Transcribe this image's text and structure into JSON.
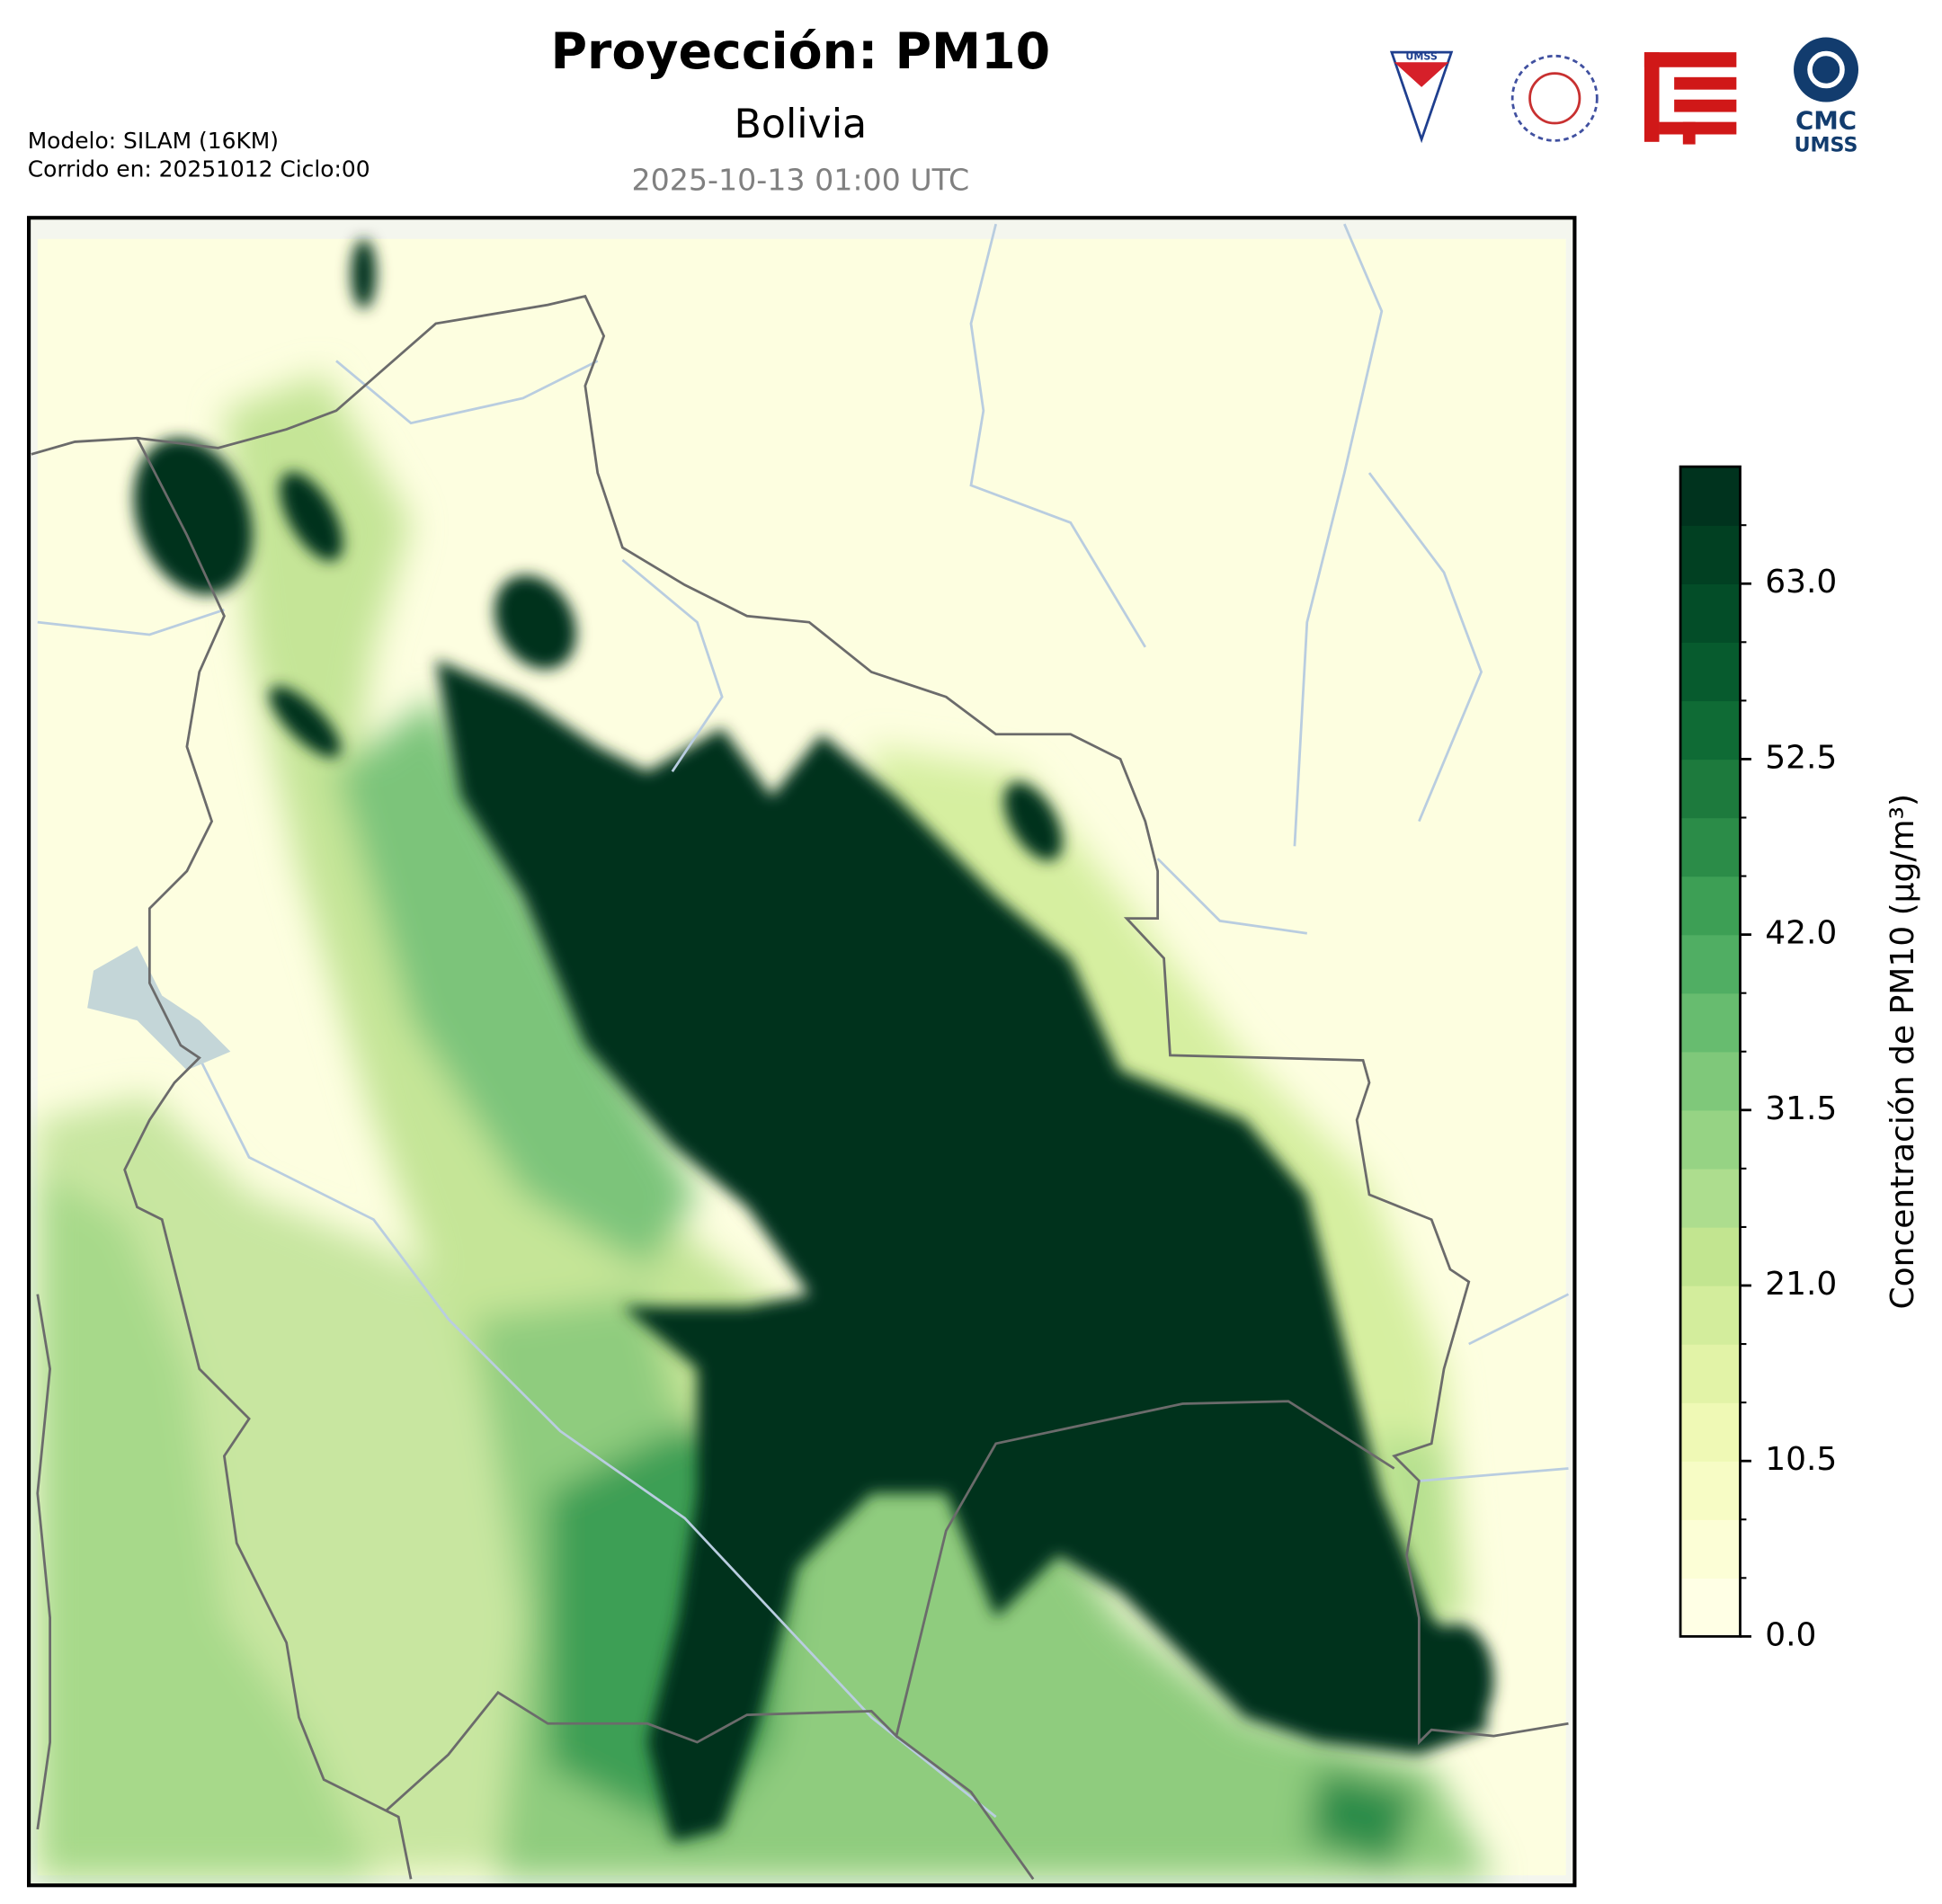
{
  "header": {
    "title": "Proyección: PM10",
    "subtitle": "Bolivia",
    "date": "2025-10-13 01:00 UTC",
    "model": "Modelo: SILAM (16KM)",
    "run": "Corrido en: 20251012 Ciclo:00",
    "logo_cmc": "CMC",
    "logo_umss": "UMSS",
    "logo_badge": "UMSS"
  },
  "colorbar": {
    "label": "Concentración de PM10 (µg/m³)",
    "lim": [
      0,
      70
    ],
    "ticks": [
      {
        "value": 0,
        "label": "0.0"
      },
      {
        "value": 10.5,
        "label": "10.5"
      },
      {
        "value": 21,
        "label": "21.0"
      },
      {
        "value": 31.5,
        "label": "31.5"
      },
      {
        "value": 42,
        "label": "42.0"
      },
      {
        "value": 52.5,
        "label": "52.5"
      },
      {
        "value": 63,
        "label": "63.0"
      }
    ],
    "colors": [
      "#ffffe5",
      "#fcfed6",
      "#f7fcc5",
      "#eff9b5",
      "#e2f3a7",
      "#d3ed9c",
      "#c2e590",
      "#addd8e",
      "#96d384",
      "#7fc87a",
      "#67bc6f",
      "#50ae63",
      "#3d9f55",
      "#2b8c48",
      "#1d7a3d",
      "#0f6b35",
      "#075b2e",
      "#034d28",
      "#014022",
      "#00331e"
    ]
  }
}
